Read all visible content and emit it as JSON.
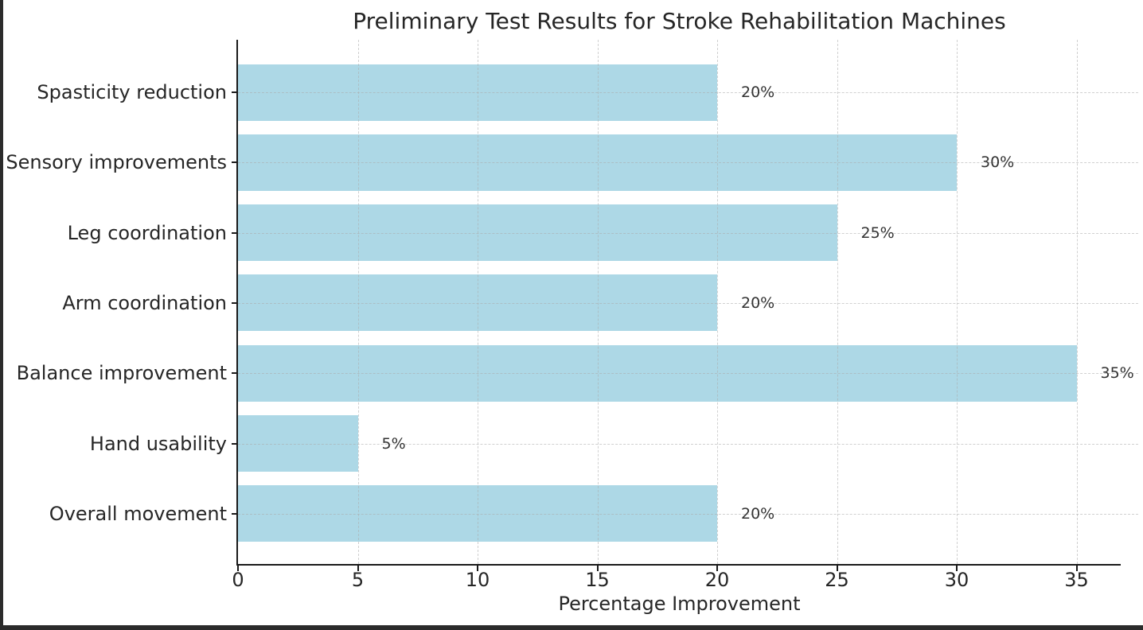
{
  "chart_data": {
    "type": "bar",
    "orientation": "horizontal",
    "title": "Preliminary Test Results for Stroke Rehabilitation Machines",
    "xlabel": "Percentage Improvement",
    "ylabel": "",
    "categories": [
      "Spasticity reduction",
      "Sensory improvements",
      "Leg coordination",
      "Arm coordination",
      "Balance improvement",
      "Hand usability",
      "Overall movement"
    ],
    "values": [
      20,
      30,
      25,
      20,
      35,
      5,
      20
    ],
    "value_labels": [
      "20%",
      "30%",
      "25%",
      "20%",
      "35%",
      "5%",
      "20%"
    ],
    "xticks": [
      0,
      5,
      10,
      15,
      20,
      25,
      30,
      35
    ],
    "xtick_labels": [
      "0",
      "5",
      "10",
      "15",
      "20",
      "25",
      "30",
      "35"
    ],
    "xlim": [
      0,
      36.8
    ],
    "grid": {
      "visible": true,
      "line_style": "dashed",
      "axes": "both",
      "drawn_above_bars": true
    },
    "legend": "none",
    "style": {
      "bar_color": "#ADD8E6",
      "background": "#FFFFFF",
      "grid_color": "#ABABAB",
      "spine_color": "#1A1A1A",
      "text_color": "#262626",
      "value_label_color": "#333333",
      "frame_color": "#2B2B2B"
    }
  }
}
